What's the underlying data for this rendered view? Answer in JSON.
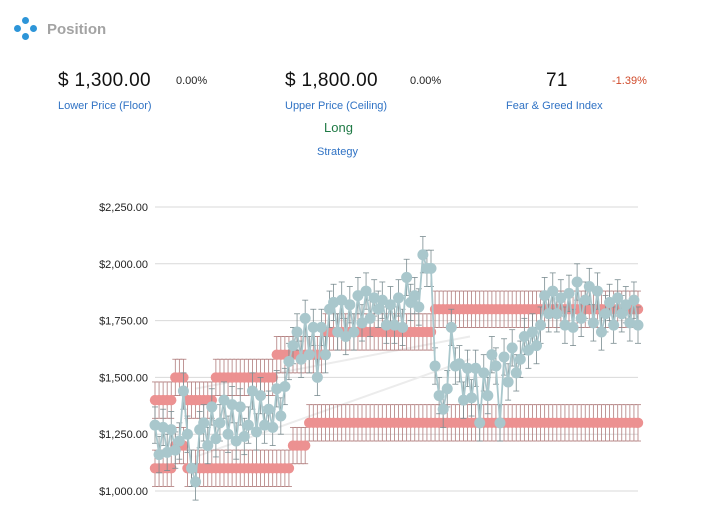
{
  "header": {
    "title": "Position",
    "logo_icon": "diamond-dots-logo-icon"
  },
  "stats": {
    "floor": {
      "value": "$ 1,300.00",
      "change": "0.00%",
      "label": "Lower Price (Floor)"
    },
    "ceiling": {
      "value": "$ 1,800.00",
      "change": "0.00%",
      "label": "Upper Price (Ceiling)"
    },
    "fear_greed": {
      "value": "71",
      "change": "-1.39%",
      "label": "Fear & Greed Index"
    },
    "strategy": {
      "value": "Long",
      "label": "Strategy"
    }
  },
  "colors": {
    "accent": "#2d95d8",
    "label_blue": "#2f72c4",
    "positive": "#1f7a45",
    "negative": "#d04a2a",
    "price_series": "#a9c7cc",
    "band_series": "#ec9191"
  },
  "chart_data": {
    "type": "line",
    "title": "",
    "xlabel": "",
    "ylabel": "",
    "ylim": [
      1000,
      2250
    ],
    "yticks": [
      "$1,000.00",
      "$1,250.00",
      "$1,500.00",
      "$1,750.00",
      "$2,000.00",
      "$2,250.00"
    ],
    "grid": true,
    "legend": "none",
    "error_bar_range": 80,
    "series": [
      {
        "role": "price",
        "values": [
          1290,
          1160,
          1280,
          1170,
          1270,
          1180,
          1220,
          1440,
          1250,
          1100,
          1040,
          1270,
          1300,
          1200,
          1370,
          1230,
          1300,
          1400,
          1250,
          1380,
          1220,
          1370,
          1240,
          1290,
          1440,
          1260,
          1420,
          1290,
          1360,
          1280,
          1450,
          1330,
          1460,
          1570,
          1640,
          1700,
          1580,
          1760,
          1600,
          1720,
          1500,
          1720,
          1600,
          1800,
          1830,
          1700,
          1840,
          1680,
          1820,
          1700,
          1860,
          1740,
          1880,
          1760,
          1850,
          1800,
          1840,
          1730,
          1820,
          1730,
          1850,
          1720,
          1940,
          1830,
          1860,
          1810,
          2040,
          1980,
          1980,
          1550,
          1420,
          1360,
          1450,
          1720,
          1550,
          1560,
          1400,
          1540,
          1410,
          1540,
          1300,
          1520,
          1420,
          1600,
          1550,
          1300,
          1590,
          1480,
          1630,
          1520,
          1580,
          1680,
          1620,
          1700,
          1640,
          1730,
          1860,
          1780,
          1880,
          1780,
          1850,
          1730,
          1870,
          1720,
          1920,
          1760,
          1840,
          1900,
          1740,
          1880,
          1700,
          1780,
          1830,
          1730,
          1850,
          1780,
          1820,
          1740,
          1840,
          1730
        ]
      },
      {
        "role": "upper",
        "values": [
          1400,
          1400,
          1400,
          1400,
          1400,
          1500,
          1500,
          1500,
          1400,
          1400,
          1400,
          1400,
          1400,
          1400,
          1400,
          1500,
          1500,
          1500,
          1500,
          1500,
          1500,
          1500,
          1500,
          1500,
          1500,
          1500,
          1500,
          1500,
          1500,
          1500,
          1600,
          1600,
          1600,
          1600,
          1600,
          1600,
          1600,
          1600,
          1600,
          1600,
          1600,
          1600,
          1700,
          1700,
          1700,
          1700,
          1700,
          1700,
          1700,
          1700,
          1700,
          1700,
          1700,
          1700,
          1700,
          1700,
          1700,
          1700,
          1700,
          1700,
          1700,
          1700,
          1700,
          1700,
          1700,
          1700,
          1700,
          1700,
          1700,
          1800,
          1800,
          1800,
          1800,
          1800,
          1800,
          1800,
          1800,
          1800,
          1800,
          1800,
          1800,
          1800,
          1800,
          1800,
          1800,
          1800,
          1800,
          1800,
          1800,
          1800,
          1800,
          1800,
          1800,
          1800,
          1800,
          1800,
          1800,
          1800,
          1800,
          1800,
          1800,
          1800,
          1800,
          1800,
          1800,
          1800,
          1800,
          1800,
          1800,
          1800,
          1800,
          1800,
          1800,
          1800,
          1800,
          1800,
          1800,
          1800,
          1800,
          1800
        ]
      },
      {
        "role": "lower",
        "values": [
          1100,
          1100,
          1100,
          1100,
          1100,
          1200,
          1200,
          1200,
          1100,
          1100,
          1100,
          1100,
          1100,
          1100,
          1100,
          1100,
          1100,
          1100,
          1100,
          1100,
          1100,
          1100,
          1100,
          1100,
          1100,
          1100,
          1100,
          1100,
          1100,
          1100,
          1100,
          1100,
          1100,
          1100,
          1200,
          1200,
          1200,
          1200,
          1300,
          1300,
          1300,
          1300,
          1300,
          1300,
          1300,
          1300,
          1300,
          1300,
          1300,
          1300,
          1300,
          1300,
          1300,
          1300,
          1300,
          1300,
          1300,
          1300,
          1300,
          1300,
          1300,
          1300,
          1300,
          1300,
          1300,
          1300,
          1300,
          1300,
          1300,
          1300,
          1300,
          1300,
          1300,
          1300,
          1300,
          1300,
          1300,
          1300,
          1300,
          1300,
          1300,
          1300,
          1300,
          1300,
          1300,
          1300,
          1300,
          1300,
          1300,
          1300,
          1300,
          1300,
          1300,
          1300,
          1300,
          1300,
          1300,
          1300,
          1300,
          1300,
          1300,
          1300,
          1300,
          1300,
          1300,
          1300,
          1300,
          1300,
          1300,
          1300,
          1300,
          1300,
          1300,
          1300,
          1300,
          1300,
          1300,
          1300,
          1300,
          1300
        ]
      }
    ]
  }
}
